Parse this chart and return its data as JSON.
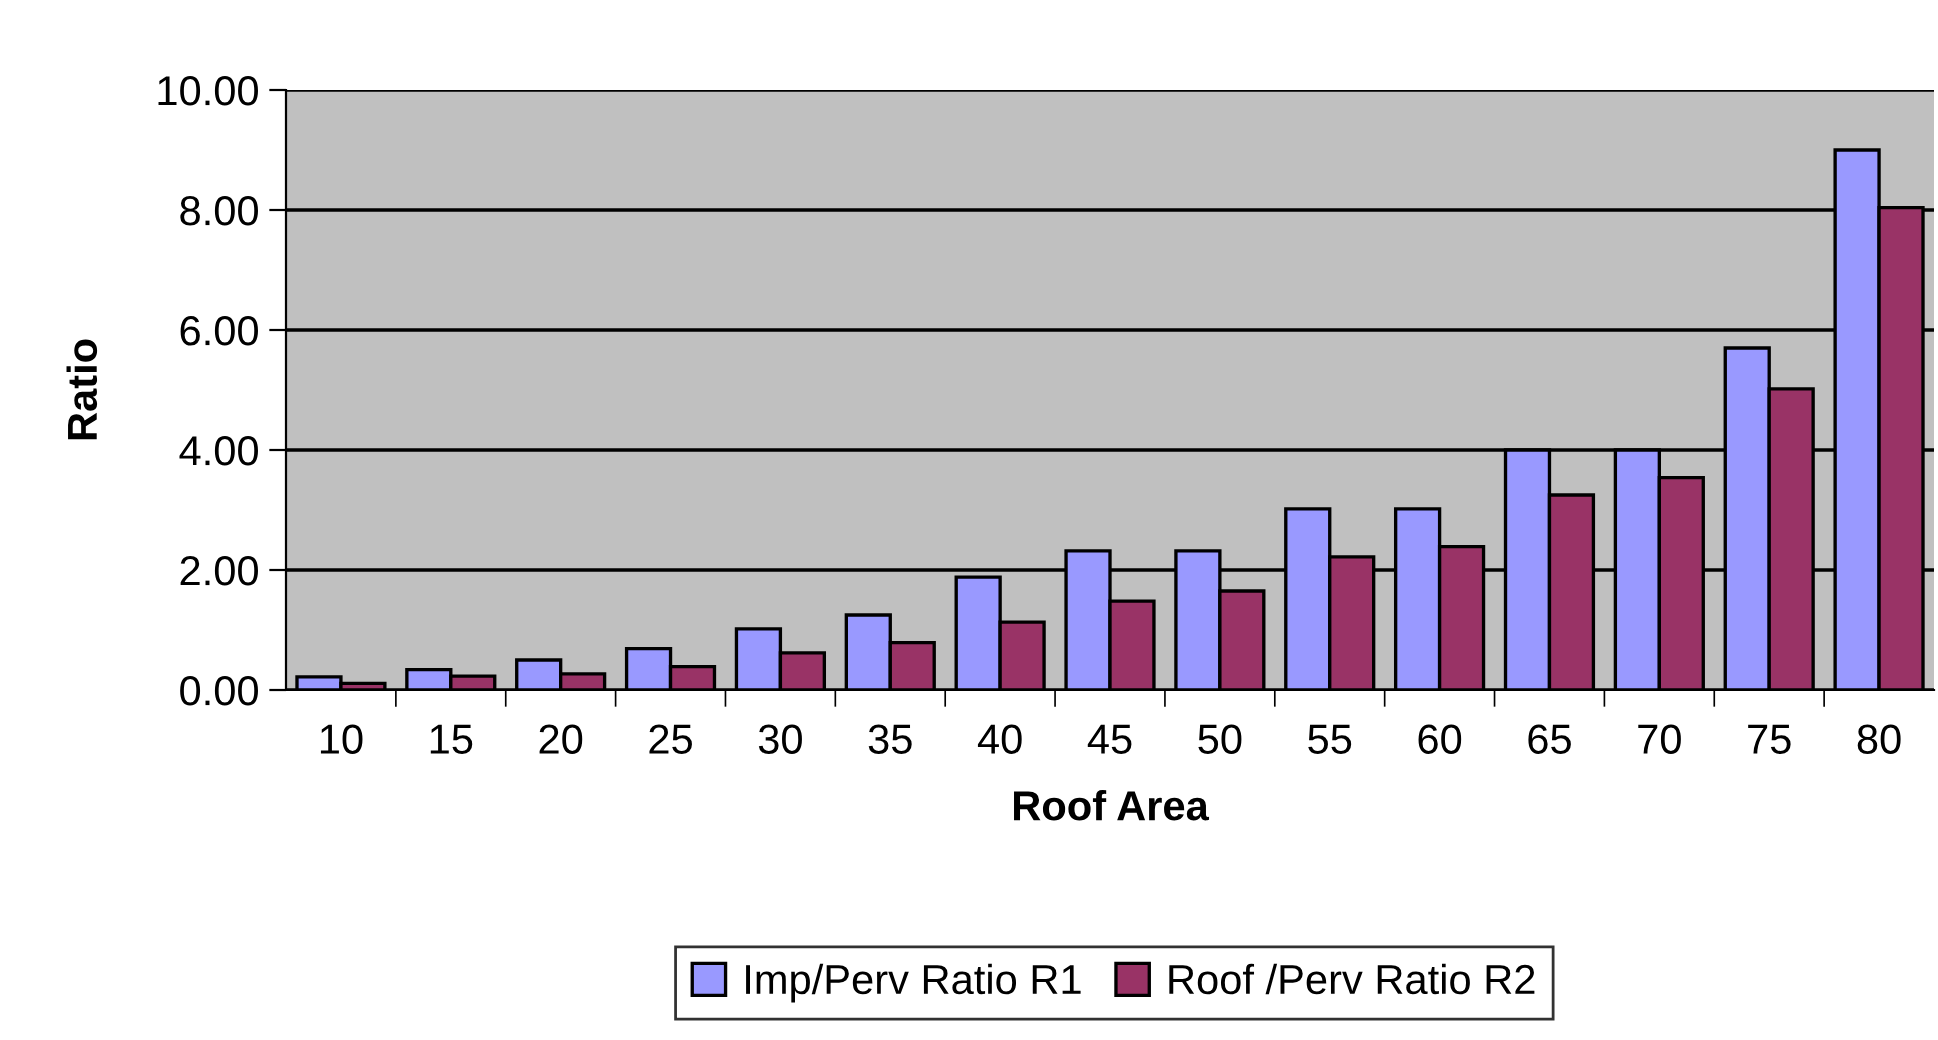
{
  "chart_data": {
    "type": "bar",
    "xlabel": "Roof Area",
    "ylabel": "Ratio",
    "categories": [
      "10",
      "15",
      "20",
      "25",
      "30",
      "35",
      "40",
      "45",
      "50",
      "55",
      "60",
      "65",
      "70",
      "75",
      "80"
    ],
    "series": [
      {
        "name": "Imp/Perv Ratio R1",
        "color": "#9999ff",
        "values": [
          0.22,
          0.34,
          0.5,
          0.69,
          1.02,
          1.25,
          1.88,
          2.32,
          2.32,
          3.02,
          3.02,
          4.0,
          4.0,
          5.7,
          9.0
        ]
      },
      {
        "name": "Roof /Perv Ratio R2",
        "color": "#993366",
        "values": [
          0.11,
          0.23,
          0.27,
          0.39,
          0.62,
          0.79,
          1.13,
          1.48,
          1.65,
          2.22,
          2.39,
          3.25,
          3.54,
          5.02,
          8.04
        ]
      }
    ],
    "ylim": [
      0,
      10
    ],
    "yticks": [
      {
        "value": 0,
        "label": "0.00"
      },
      {
        "value": 2,
        "label": "2.00"
      },
      {
        "value": 4,
        "label": "4.00"
      },
      {
        "value": 6,
        "label": "6.00"
      },
      {
        "value": 8,
        "label": "8.00"
      },
      {
        "value": 10,
        "label": "10.00"
      }
    ],
    "grid": "y",
    "legend": "bottom"
  }
}
